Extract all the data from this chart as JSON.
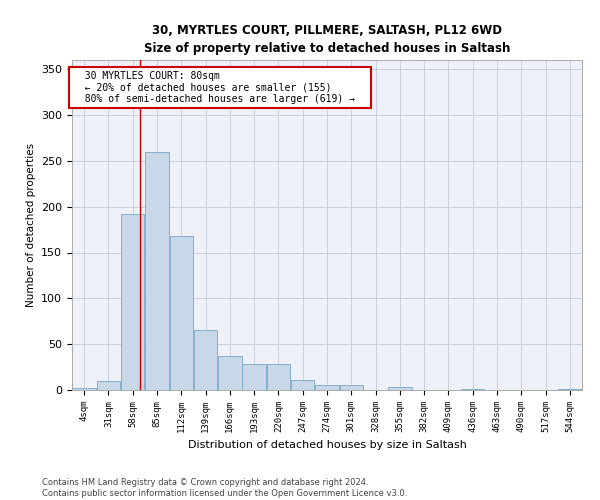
{
  "title_line1": "30, MYRTLES COURT, PILLMERE, SALTASH, PL12 6WD",
  "title_line2": "Size of property relative to detached houses in Saltash",
  "xlabel": "Distribution of detached houses by size in Saltash",
  "ylabel": "Number of detached properties",
  "bar_color": "#c8d8e8",
  "bar_edge_color": "#7aa8c8",
  "grid_color": "#c8d0e0",
  "background_color": "#eef2f8",
  "annotation_box_color": "#cc0000",
  "annotation_text": "  30 MYRTLES COURT: 80sqm  \n  ← 20% of detached houses are smaller (155)  \n  80% of semi-detached houses are larger (619) →  ",
  "vline_x": 80,
  "vline_color": "#cc0000",
  "tick_labels": [
    "4sqm",
    "31sqm",
    "58sqm",
    "85sqm",
    "112sqm",
    "139sqm",
    "166sqm",
    "193sqm",
    "220sqm",
    "247sqm",
    "274sqm",
    "301sqm",
    "328sqm",
    "355sqm",
    "382sqm",
    "409sqm",
    "436sqm",
    "463sqm",
    "490sqm",
    "517sqm",
    "544sqm"
  ],
  "bin_edges": [
    4,
    31,
    58,
    85,
    112,
    139,
    166,
    193,
    220,
    247,
    274,
    301,
    328,
    355,
    382,
    409,
    436,
    463,
    490,
    517,
    544
  ],
  "bar_values": [
    2,
    10,
    192,
    260,
    168,
    65,
    37,
    28,
    28,
    11,
    6,
    6,
    0,
    3,
    0,
    0,
    1,
    0,
    0,
    0,
    1
  ],
  "ylim": [
    0,
    360
  ],
  "yticks": [
    0,
    50,
    100,
    150,
    200,
    250,
    300,
    350
  ],
  "footnote1": "Contains HM Land Registry data © Crown copyright and database right 2024.",
  "footnote2": "Contains public sector information licensed under the Open Government Licence v3.0."
}
